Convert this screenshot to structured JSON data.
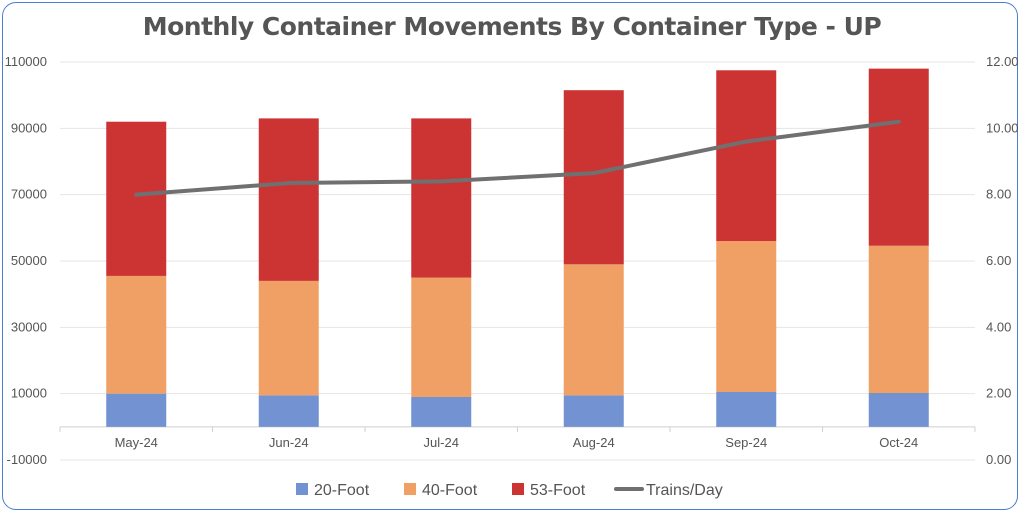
{
  "chart_data": {
    "type": "bar",
    "stacked": true,
    "title": "Monthly Container Movements By Container Type - UP",
    "categories": [
      "May-24",
      "Jun-24",
      "Jul-24",
      "Aug-24",
      "Sep-24",
      "Oct-24"
    ],
    "series": [
      {
        "name": "20-Foot",
        "axis": "left",
        "color": "#7292d2",
        "values": [
          10000,
          9500,
          9000,
          9500,
          10500,
          10200
        ]
      },
      {
        "name": "40-Foot",
        "axis": "left",
        "color": "#f0a064",
        "values": [
          35500,
          34500,
          36000,
          39500,
          45500,
          44400
        ]
      },
      {
        "name": "53-Foot",
        "axis": "left",
        "color": "#cc3434",
        "values": [
          46500,
          49000,
          48000,
          52500,
          51500,
          53400
        ]
      }
    ],
    "line_series": {
      "name": "Trains/Day",
      "axis": "right",
      "type": "line",
      "color": "#707070",
      "values": [
        8.0,
        8.35,
        8.4,
        8.65,
        9.6,
        10.2
      ]
    },
    "left_axis": {
      "ylim": [
        -10000,
        110000
      ],
      "ticks": [
        "-10000",
        "10000",
        "30000",
        "50000",
        "70000",
        "90000",
        "110000"
      ],
      "tick_values": [
        -10000,
        10000,
        30000,
        50000,
        70000,
        90000,
        110000
      ]
    },
    "right_axis": {
      "ylim": [
        0,
        12
      ],
      "ticks": [
        "0.00",
        "2.00",
        "4.00",
        "6.00",
        "8.00",
        "10.00",
        "12.00"
      ],
      "tick_values": [
        0,
        2,
        4,
        6,
        8,
        10,
        12
      ]
    },
    "legend_position": "bottom",
    "grid": true
  }
}
